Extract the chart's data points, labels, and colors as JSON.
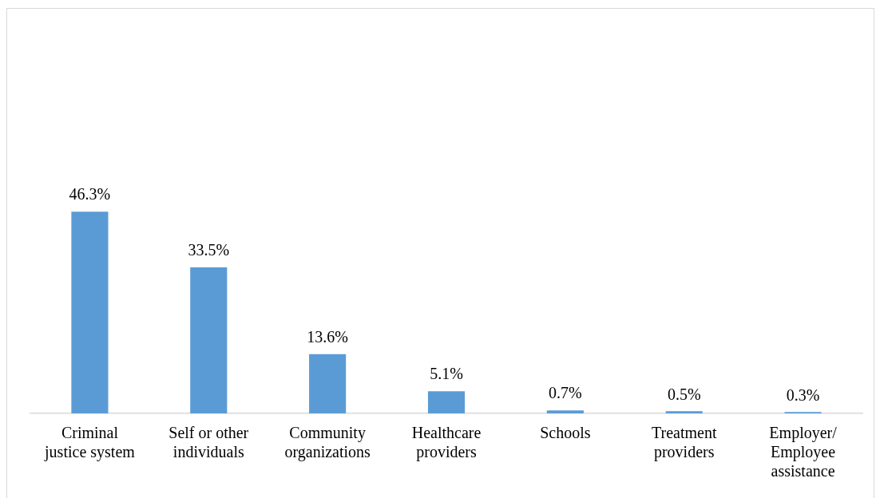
{
  "chart_data": {
    "type": "bar",
    "categories": [
      "Criminal justice system",
      "Self or other individuals",
      "Community organizations",
      "Healthcare providers",
      "Schools",
      "Treatment providers",
      "Employer/Employee assistance"
    ],
    "values": [
      46.3,
      33.5,
      13.6,
      5.1,
      0.7,
      0.5,
      0.3
    ],
    "color": "#5b9bd5",
    "data_labels": true,
    "value_labels": [
      "46.3%",
      "33.5%",
      "13.6%",
      "5.1%",
      "0.7%",
      "0.5%",
      "0.3%"
    ],
    "tick_labels": "x",
    "grid": false,
    "legend": false
  }
}
